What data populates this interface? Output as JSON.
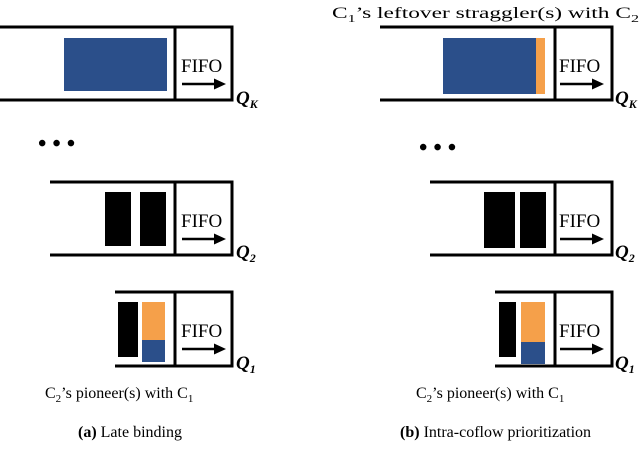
{
  "colors": {
    "blue": "#2b4f8a",
    "orange": "#f5a04a",
    "black": "#000000"
  },
  "fifo_label": "FIFO",
  "ellipsis": "• • •",
  "queues": {
    "k": {
      "letter": "Q",
      "sub": "K"
    },
    "two": {
      "letter": "Q",
      "sub": "2"
    },
    "one": {
      "letter": "Q",
      "sub": "1"
    }
  },
  "annotations": {
    "straggler": {
      "c": "C",
      "n1": "1",
      "mid": "’s leftover straggler(s) with C",
      "n2": "2"
    },
    "pioneer": {
      "c": "C",
      "n1": "2",
      "mid": "’s pioneer(s) with C",
      "n2": "1"
    }
  },
  "captions": {
    "a": {
      "label": "(a)",
      "text": " Late binding"
    },
    "b": {
      "label": "(b)",
      "text": " Intra-coflow prioritization"
    }
  }
}
